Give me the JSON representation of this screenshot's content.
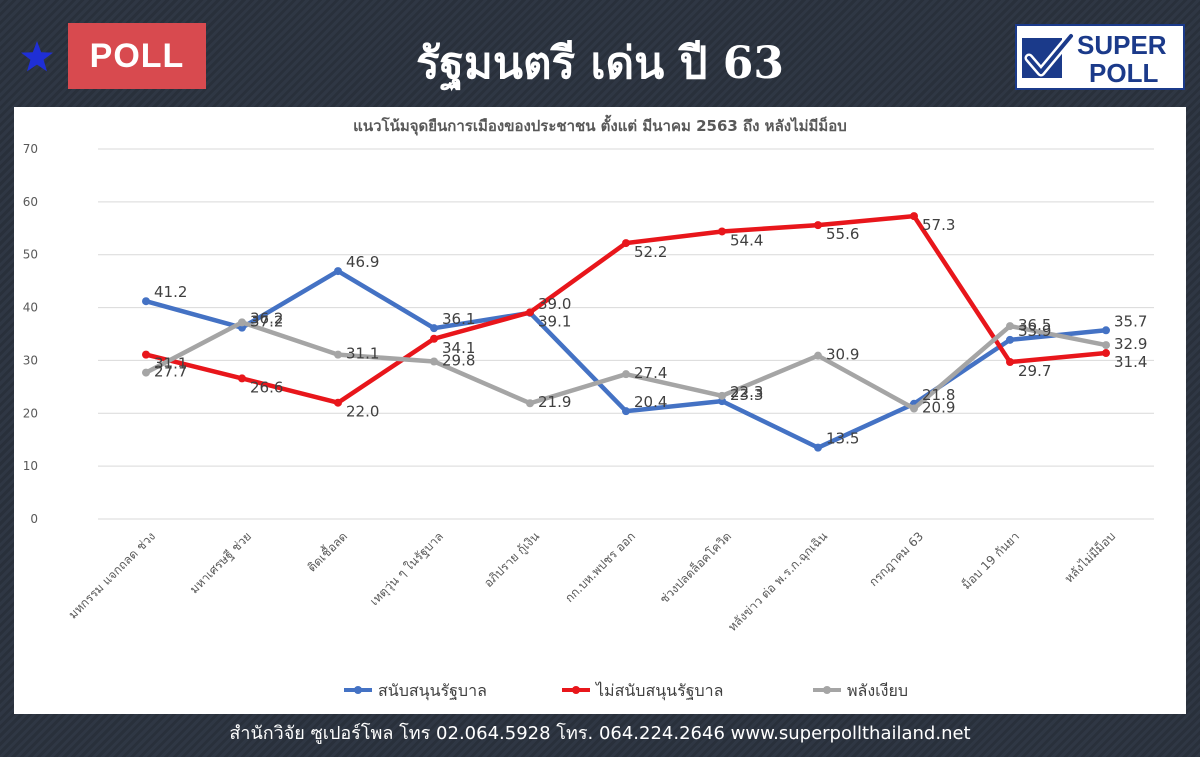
{
  "header": {
    "badge": "POLL",
    "title": "รัฐมนตรี เด่น ปี 63",
    "logo_line1": "SUPER",
    "logo_line2": "POLL",
    "star_icon": "star-icon",
    "check_icon": "checkmark-icon"
  },
  "chart_data": {
    "type": "line",
    "title": "แนวโน้มจุดยืนการเมืองของประชาชน ตั้งแต่ มีนาคม 2563 ถึง หลังไม่มีม็อบ",
    "categories": [
      "มหกรรม แจกถลด ช่วง",
      "มหาเศรษฐี ช่วย",
      "ติดเชื้อลด",
      "เหตุวุ่น ๆ ในรัฐบาล",
      "อภิปราย กู้เงิน",
      "กก.บห.พปชร ออก",
      "ช่วงปลดล็อคโควิด",
      "หลังข่าว ต่อ พ.ร.ก.ฉุกเฉิน",
      "กรกฎาคม 63",
      "ม็อบ 19 กันยา",
      "หลังไม่มีม็อบ"
    ],
    "ylim": [
      0,
      70
    ],
    "yticks": [
      0,
      10,
      20,
      30,
      40,
      50,
      60,
      70
    ],
    "grid": true,
    "legend_position": "bottom",
    "series": [
      {
        "name": "สนับสนุนรัฐบาล",
        "color": "#4472c4",
        "values": [
          41.2,
          36.2,
          46.9,
          36.1,
          39.0,
          20.4,
          22.3,
          13.5,
          21.8,
          33.9,
          35.7
        ]
      },
      {
        "name": "ไม่สนับสนุนรัฐบาล",
        "color": "#e8161b",
        "values": [
          31.1,
          26.6,
          22.0,
          34.1,
          39.1,
          52.2,
          54.4,
          55.6,
          57.3,
          29.7,
          31.4
        ]
      },
      {
        "name": "พลังเงียบ",
        "color": "#a5a5a5",
        "values": [
          27.7,
          37.2,
          31.1,
          29.8,
          21.9,
          27.4,
          23.3,
          30.9,
          20.9,
          36.5,
          32.9
        ]
      }
    ]
  },
  "footer": {
    "text": "สำนักวิจัย ซูเปอร์โพล โทร 02.064.5928  โทร. 064.224.2646 www.superpollthailand.net"
  }
}
